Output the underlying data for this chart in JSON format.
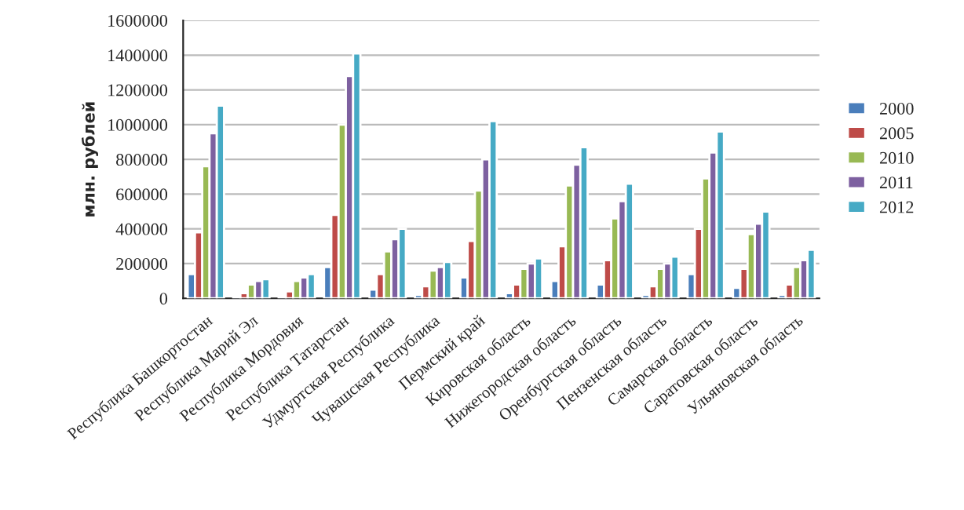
{
  "chart_data": {
    "type": "bar",
    "ylabel": "млн. рублей",
    "categories": [
      "Республика Башкортостан",
      "Республика Марий Эл",
      "Республика Мордовия",
      "Республика Татарстан",
      "Удмуртская Республика",
      "Чувашская Республика",
      "Пермский край",
      "Кировская область",
      "Нижегородская область",
      "Оренбургская область",
      "Пензенская область",
      "Самарская область",
      "Саратовская область",
      "Ульяновская область"
    ],
    "series": [
      {
        "name": "2000",
        "color": "#4a7ebb",
        "values": [
          140000,
          10000,
          10000,
          180000,
          50000,
          20000,
          120000,
          30000,
          100000,
          80000,
          20000,
          140000,
          60000,
          20000
        ]
      },
      {
        "name": "2005",
        "color": "#be4b48",
        "values": [
          380000,
          30000,
          40000,
          480000,
          140000,
          70000,
          330000,
          80000,
          300000,
          220000,
          70000,
          400000,
          170000,
          80000
        ]
      },
      {
        "name": "2010",
        "color": "#98b954",
        "values": [
          760000,
          80000,
          100000,
          1000000,
          270000,
          160000,
          620000,
          170000,
          650000,
          460000,
          170000,
          690000,
          370000,
          180000
        ]
      },
      {
        "name": "2011",
        "color": "#7d60a0",
        "values": [
          950000,
          100000,
          120000,
          1280000,
          340000,
          180000,
          800000,
          200000,
          770000,
          560000,
          200000,
          840000,
          430000,
          220000
        ]
      },
      {
        "name": "2012",
        "color": "#46aac5",
        "values": [
          1110000,
          110000,
          140000,
          1410000,
          400000,
          210000,
          1020000,
          230000,
          870000,
          660000,
          240000,
          960000,
          500000,
          280000
        ]
      }
    ],
    "ylim": [
      0,
      1600000
    ],
    "yticks": [
      0,
      200000,
      400000,
      600000,
      800000,
      1000000,
      1200000,
      1400000,
      1600000
    ],
    "grid": "y",
    "legend": "right"
  }
}
